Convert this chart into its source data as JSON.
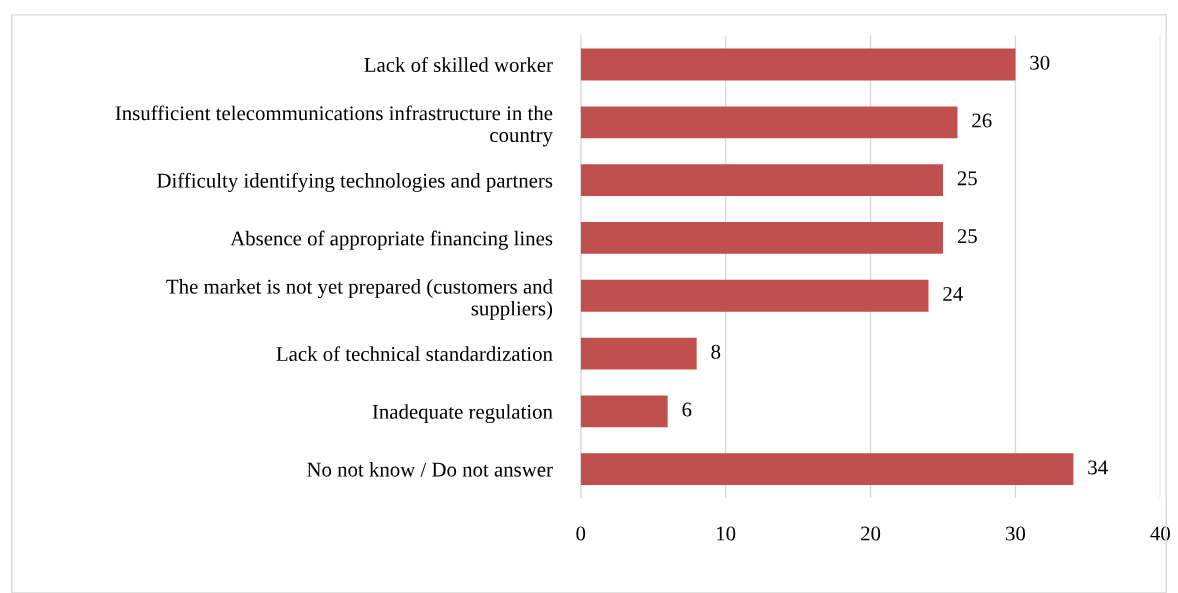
{
  "chart_data": {
    "type": "bar",
    "orientation": "horizontal",
    "categories": [
      "Lack of skilled worker",
      "Insufficient telecommunications infrastructure in the\ncountry",
      "Difficulty identifying technologies and partners",
      "Absence of appropriate financing lines",
      "The market is not yet prepared (customers and\nsuppliers)",
      "Lack of technical standardization",
      "Inadequate regulation",
      "No not know / Do not answer"
    ],
    "values": [
      30,
      26,
      25,
      25,
      24,
      8,
      6,
      34
    ],
    "color": "#c0504d",
    "data_labels": true,
    "xlim": [
      0,
      40
    ],
    "xticks": [
      0,
      10,
      20,
      30,
      40
    ],
    "grid": "x"
  }
}
